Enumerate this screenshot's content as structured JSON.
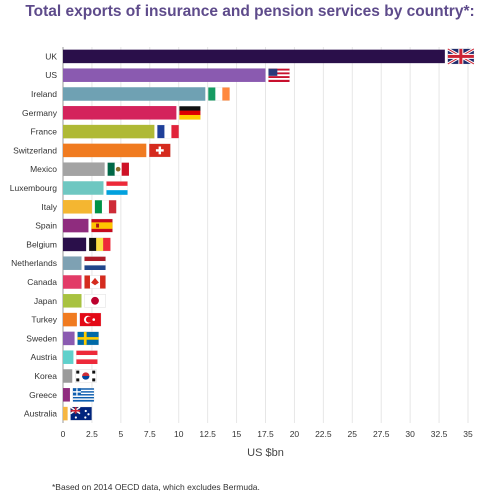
{
  "title": "Total exports of insurance and pension services by country*:",
  "footnote": "*Based on 2014 OECD data, which excludes Bermuda.",
  "chart_data": {
    "type": "bar",
    "orientation": "horizontal",
    "title": "Total exports of insurance and pension services by country*:",
    "xlabel": "US $bn",
    "ylabel": "",
    "xlim": [
      0,
      35
    ],
    "xticks": [
      "0",
      "2.5",
      "5",
      "7.5",
      "10",
      "12.5",
      "15",
      "17.5",
      "20",
      "22.5",
      "25",
      "27.5",
      "30",
      "32.5",
      "35"
    ],
    "grid": "vertical",
    "categories": [
      "UK",
      "US",
      "Ireland",
      "Germany",
      "France",
      "Switzerland",
      "Mexico",
      "Luxembourg",
      "Italy",
      "Spain",
      "Belgium",
      "Netherlands",
      "Canada",
      "Japan",
      "Turkey",
      "Sweden",
      "Austria",
      "Korea",
      "Greece",
      "Australia"
    ],
    "values": [
      33.0,
      17.5,
      12.3,
      9.8,
      7.9,
      7.2,
      3.6,
      3.5,
      2.5,
      2.2,
      2.0,
      1.6,
      1.6,
      1.6,
      1.2,
      1.0,
      0.9,
      0.8,
      0.6,
      0.4
    ],
    "colors": [
      "#2a0f4a",
      "#8a5ab0",
      "#6fa1b3",
      "#d4235c",
      "#afb935",
      "#f07b20",
      "#a3a3a3",
      "#6ec7c1",
      "#f4b631",
      "#8f2c7e",
      "#2a0f4a",
      "#7ea1b3",
      "#e23b67",
      "#a8c240",
      "#f07b20",
      "#8a5ab0",
      "#5fd0cb",
      "#9b9b9b",
      "#8f2c7e",
      "#f6b642"
    ],
    "flags": [
      "uk-flag",
      "us-flag",
      "ireland-flag",
      "germany-flag",
      "france-flag",
      "switzerland-flag",
      "mexico-flag",
      "luxembourg-flag",
      "italy-flag",
      "spain-flag",
      "belgium-flag",
      "netherlands-flag",
      "canada-flag",
      "japan-flag",
      "turkey-flag",
      "sweden-flag",
      "austria-flag",
      "korea-flag",
      "greece-flag",
      "australia-flag"
    ]
  }
}
